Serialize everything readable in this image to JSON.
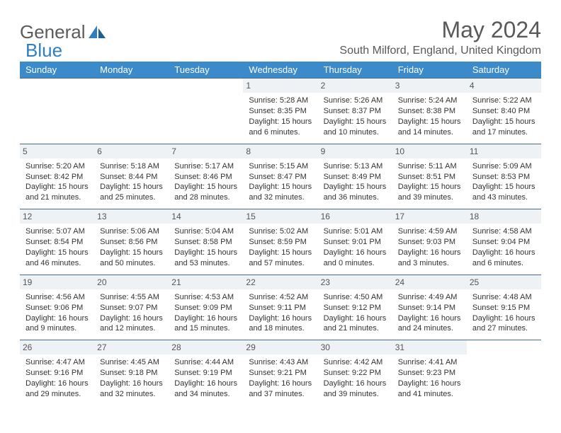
{
  "brand": {
    "part1": "General",
    "part2": "Blue"
  },
  "title": "May 2024",
  "location": "South Milford, England, United Kingdom",
  "colors": {
    "header_bg": "#3b8bca",
    "header_text": "#ffffff",
    "daynum_bg": "#eef2f5",
    "row_border": "#4a6a8a",
    "title_color": "#595959",
    "cell_text": "#333333",
    "background": "#ffffff"
  },
  "typography": {
    "title_fontsize": 32,
    "location_fontsize": 16,
    "dayhead_fontsize": 13,
    "daynum_fontsize": 12,
    "cell_fontsize": 11
  },
  "dayNames": [
    "Sunday",
    "Monday",
    "Tuesday",
    "Wednesday",
    "Thursday",
    "Friday",
    "Saturday"
  ],
  "weeks": [
    [
      null,
      null,
      null,
      {
        "n": "1",
        "sr": "Sunrise: 5:28 AM",
        "ss": "Sunset: 8:35 PM",
        "d1": "Daylight: 15 hours",
        "d2": "and 6 minutes."
      },
      {
        "n": "2",
        "sr": "Sunrise: 5:26 AM",
        "ss": "Sunset: 8:37 PM",
        "d1": "Daylight: 15 hours",
        "d2": "and 10 minutes."
      },
      {
        "n": "3",
        "sr": "Sunrise: 5:24 AM",
        "ss": "Sunset: 8:38 PM",
        "d1": "Daylight: 15 hours",
        "d2": "and 14 minutes."
      },
      {
        "n": "4",
        "sr": "Sunrise: 5:22 AM",
        "ss": "Sunset: 8:40 PM",
        "d1": "Daylight: 15 hours",
        "d2": "and 17 minutes."
      }
    ],
    [
      {
        "n": "5",
        "sr": "Sunrise: 5:20 AM",
        "ss": "Sunset: 8:42 PM",
        "d1": "Daylight: 15 hours",
        "d2": "and 21 minutes."
      },
      {
        "n": "6",
        "sr": "Sunrise: 5:18 AM",
        "ss": "Sunset: 8:44 PM",
        "d1": "Daylight: 15 hours",
        "d2": "and 25 minutes."
      },
      {
        "n": "7",
        "sr": "Sunrise: 5:17 AM",
        "ss": "Sunset: 8:46 PM",
        "d1": "Daylight: 15 hours",
        "d2": "and 28 minutes."
      },
      {
        "n": "8",
        "sr": "Sunrise: 5:15 AM",
        "ss": "Sunset: 8:47 PM",
        "d1": "Daylight: 15 hours",
        "d2": "and 32 minutes."
      },
      {
        "n": "9",
        "sr": "Sunrise: 5:13 AM",
        "ss": "Sunset: 8:49 PM",
        "d1": "Daylight: 15 hours",
        "d2": "and 36 minutes."
      },
      {
        "n": "10",
        "sr": "Sunrise: 5:11 AM",
        "ss": "Sunset: 8:51 PM",
        "d1": "Daylight: 15 hours",
        "d2": "and 39 minutes."
      },
      {
        "n": "11",
        "sr": "Sunrise: 5:09 AM",
        "ss": "Sunset: 8:53 PM",
        "d1": "Daylight: 15 hours",
        "d2": "and 43 minutes."
      }
    ],
    [
      {
        "n": "12",
        "sr": "Sunrise: 5:07 AM",
        "ss": "Sunset: 8:54 PM",
        "d1": "Daylight: 15 hours",
        "d2": "and 46 minutes."
      },
      {
        "n": "13",
        "sr": "Sunrise: 5:06 AM",
        "ss": "Sunset: 8:56 PM",
        "d1": "Daylight: 15 hours",
        "d2": "and 50 minutes."
      },
      {
        "n": "14",
        "sr": "Sunrise: 5:04 AM",
        "ss": "Sunset: 8:58 PM",
        "d1": "Daylight: 15 hours",
        "d2": "and 53 minutes."
      },
      {
        "n": "15",
        "sr": "Sunrise: 5:02 AM",
        "ss": "Sunset: 8:59 PM",
        "d1": "Daylight: 15 hours",
        "d2": "and 57 minutes."
      },
      {
        "n": "16",
        "sr": "Sunrise: 5:01 AM",
        "ss": "Sunset: 9:01 PM",
        "d1": "Daylight: 16 hours",
        "d2": "and 0 minutes."
      },
      {
        "n": "17",
        "sr": "Sunrise: 4:59 AM",
        "ss": "Sunset: 9:03 PM",
        "d1": "Daylight: 16 hours",
        "d2": "and 3 minutes."
      },
      {
        "n": "18",
        "sr": "Sunrise: 4:58 AM",
        "ss": "Sunset: 9:04 PM",
        "d1": "Daylight: 16 hours",
        "d2": "and 6 minutes."
      }
    ],
    [
      {
        "n": "19",
        "sr": "Sunrise: 4:56 AM",
        "ss": "Sunset: 9:06 PM",
        "d1": "Daylight: 16 hours",
        "d2": "and 9 minutes."
      },
      {
        "n": "20",
        "sr": "Sunrise: 4:55 AM",
        "ss": "Sunset: 9:07 PM",
        "d1": "Daylight: 16 hours",
        "d2": "and 12 minutes."
      },
      {
        "n": "21",
        "sr": "Sunrise: 4:53 AM",
        "ss": "Sunset: 9:09 PM",
        "d1": "Daylight: 16 hours",
        "d2": "and 15 minutes."
      },
      {
        "n": "22",
        "sr": "Sunrise: 4:52 AM",
        "ss": "Sunset: 9:11 PM",
        "d1": "Daylight: 16 hours",
        "d2": "and 18 minutes."
      },
      {
        "n": "23",
        "sr": "Sunrise: 4:50 AM",
        "ss": "Sunset: 9:12 PM",
        "d1": "Daylight: 16 hours",
        "d2": "and 21 minutes."
      },
      {
        "n": "24",
        "sr": "Sunrise: 4:49 AM",
        "ss": "Sunset: 9:14 PM",
        "d1": "Daylight: 16 hours",
        "d2": "and 24 minutes."
      },
      {
        "n": "25",
        "sr": "Sunrise: 4:48 AM",
        "ss": "Sunset: 9:15 PM",
        "d1": "Daylight: 16 hours",
        "d2": "and 27 minutes."
      }
    ],
    [
      {
        "n": "26",
        "sr": "Sunrise: 4:47 AM",
        "ss": "Sunset: 9:16 PM",
        "d1": "Daylight: 16 hours",
        "d2": "and 29 minutes."
      },
      {
        "n": "27",
        "sr": "Sunrise: 4:45 AM",
        "ss": "Sunset: 9:18 PM",
        "d1": "Daylight: 16 hours",
        "d2": "and 32 minutes."
      },
      {
        "n": "28",
        "sr": "Sunrise: 4:44 AM",
        "ss": "Sunset: 9:19 PM",
        "d1": "Daylight: 16 hours",
        "d2": "and 34 minutes."
      },
      {
        "n": "29",
        "sr": "Sunrise: 4:43 AM",
        "ss": "Sunset: 9:21 PM",
        "d1": "Daylight: 16 hours",
        "d2": "and 37 minutes."
      },
      {
        "n": "30",
        "sr": "Sunrise: 4:42 AM",
        "ss": "Sunset: 9:22 PM",
        "d1": "Daylight: 16 hours",
        "d2": "and 39 minutes."
      },
      {
        "n": "31",
        "sr": "Sunrise: 4:41 AM",
        "ss": "Sunset: 9:23 PM",
        "d1": "Daylight: 16 hours",
        "d2": "and 41 minutes."
      },
      null
    ]
  ]
}
